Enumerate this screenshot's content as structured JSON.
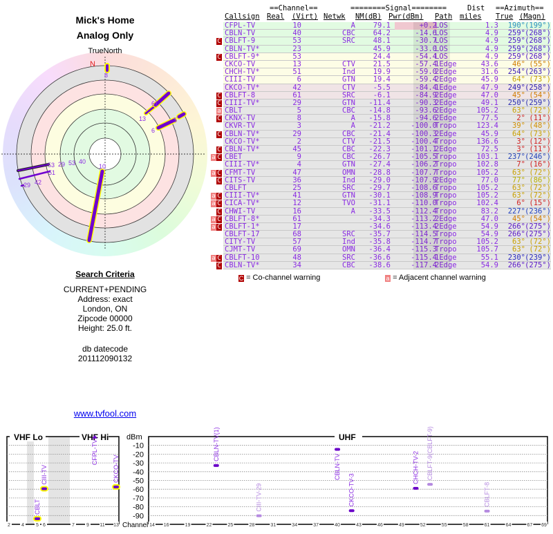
{
  "header": {
    "title": "Mick's Home",
    "subtitle": "Analog Only"
  },
  "polar": {
    "north_label": "TrueNorth",
    "n": "N",
    "labels": [
      "8",
      "61",
      "13",
      "5",
      "6",
      "10",
      "53",
      "29",
      "53",
      "40",
      "51",
      "29",
      "42"
    ]
  },
  "search": {
    "title": "Search Criteria",
    "mode": "CURRENT+PENDING",
    "address": "Address: exact",
    "city": "London, ON",
    "zip": "Zipcode 00000",
    "height": "Height: 25.0 ft.",
    "db_label": "db datecode",
    "db_value": "201112090132"
  },
  "link": "www.tvfool.com",
  "table": {
    "group_channel": "==Channel==",
    "group_signal": "========Signal========",
    "group_dist": "Dist",
    "group_az": "==Azimuth==",
    "cols": {
      "callsign": "Callsign",
      "real": "Real",
      "virt": "(Virt)",
      "netwk": "Netwk",
      "nm": "NM(dB)",
      "pwr": "Pwr(dBm)",
      "path": "Path",
      "miles": "miles",
      "true": "True",
      "magn": "(Magn)"
    },
    "rows": [
      {
        "call": "CFPL-TV",
        "real": "10",
        "net": "A",
        "nm": "79.1",
        "pwr": "+0.2",
        "path": "LOS",
        "dist": "1.3",
        "true": "190°",
        "magn": "(199°)",
        "bg": "#e2fbe2",
        "az": "#2a8fbf",
        "flag": ""
      },
      {
        "call": "CBLN-TV",
        "real": "40",
        "net": "CBC",
        "nm": "64.2",
        "pwr": "-14.6",
        "path": "LOS",
        "dist": "4.9",
        "true": "259°",
        "magn": "(268°)",
        "bg": "#e2fbe2",
        "az": "#4b16c8",
        "flag": ""
      },
      {
        "call": "CBLFT-9",
        "real": "53",
        "net": "SRC",
        "nm": "48.1",
        "pwr": "-30.7",
        "path": "LOS",
        "dist": "4.9",
        "true": "259°",
        "magn": "(268°)",
        "bg": "#e2fbe2",
        "az": "#4b16c8",
        "flag": "c"
      },
      {
        "call": "CBLN-TV*",
        "real": "23",
        "net": "",
        "nm": "45.9",
        "pwr": "-33.0",
        "path": "LOS",
        "dist": "4.9",
        "true": "259°",
        "magn": "(268°)",
        "bg": "#e2fbe2",
        "az": "#4b16c8",
        "flag": ""
      },
      {
        "call": "CBLFT-9*",
        "real": "53",
        "net": "",
        "nm": "24.4",
        "pwr": "-54.4",
        "path": "LOS",
        "dist": "4.9",
        "true": "259°",
        "magn": "(268°)",
        "bg": "#fdfde6",
        "az": "#4b16c8",
        "flag": "c"
      },
      {
        "call": "CKCO-TV",
        "real": "13",
        "net": "CTV",
        "nm": "21.5",
        "pwr": "-57.4",
        "path": "1Edge",
        "dist": "43.6",
        "true": "46°",
        "magn": "(55°)",
        "bg": "#fdfde6",
        "az": "#d07c00",
        "flag": ""
      },
      {
        "call": "CHCH-TV*",
        "real": "51",
        "net": "Ind",
        "nm": "19.9",
        "pwr": "-59.0",
        "path": "2Edge",
        "dist": "31.6",
        "true": "254°",
        "magn": "(263°)",
        "bg": "#fdfde6",
        "az": "#3a1ab8",
        "flag": ""
      },
      {
        "call": "CIII-TV",
        "real": "6",
        "net": "GTN",
        "nm": "19.4",
        "pwr": "-59.4",
        "path": "2Edge",
        "dist": "45.9",
        "true": "64°",
        "magn": "(73°)",
        "bg": "#fdfde6",
        "az": "#c8a000",
        "flag": ""
      },
      {
        "call": "CKCO-TV*",
        "real": "42",
        "net": "CTV",
        "nm": "-5.5",
        "pwr": "-84.4",
        "path": "1Edge",
        "dist": "47.9",
        "true": "249°",
        "magn": "(258°)",
        "bg": "#f0e4e6",
        "az": "#3022b0",
        "flag": ""
      },
      {
        "call": "CBLFT-8",
        "real": "61",
        "net": "SRC",
        "nm": "-6.1",
        "pwr": "-84.9",
        "path": "2Edge",
        "dist": "47.0",
        "true": "45°",
        "magn": "(54°)",
        "bg": "#f0e4e6",
        "az": "#d07c00",
        "flag": "c"
      },
      {
        "call": "CIII-TV*",
        "real": "29",
        "net": "GTN",
        "nm": "-11.4",
        "pwr": "-90.3",
        "path": "2Edge",
        "dist": "49.1",
        "true": "250°",
        "magn": "(259°)",
        "bg": "#e6e6e6",
        "az": "#2a2ab0",
        "flag": "c"
      },
      {
        "call": "CBLT",
        "real": "5",
        "net": "CBC",
        "nm": "-14.8",
        "pwr": "-93.6",
        "path": "2Edge",
        "dist": "105.2",
        "true": "63°",
        "magn": "(72°)",
        "bg": "#e6e6e6",
        "az": "#c8a000",
        "flag": "a"
      },
      {
        "call": "CKNX-TV",
        "real": "8",
        "net": "A",
        "nm": "-15.8",
        "pwr": "-94.6",
        "path": "2Edge",
        "dist": "77.5",
        "true": "2°",
        "magn": "(11°)",
        "bg": "#e6e6e6",
        "az": "#d02020",
        "flag": "c"
      },
      {
        "call": "CKVR-TV",
        "real": "3",
        "net": "A",
        "nm": "-21.2",
        "pwr": "-100.0",
        "path": "Tropo",
        "dist": "123.4",
        "true": "39°",
        "magn": "(48°)",
        "bg": "#e6e6e6",
        "az": "#d09000",
        "flag": ""
      },
      {
        "call": "CBLN-TV*",
        "real": "29",
        "net": "CBC",
        "nm": "-21.4",
        "pwr": "-100.3",
        "path": "2Edge",
        "dist": "45.9",
        "true": "64°",
        "magn": "(73°)",
        "bg": "#e6e6e6",
        "az": "#c8a000",
        "flag": "c"
      },
      {
        "call": "CKCO-TV*",
        "real": "2",
        "net": "CTV",
        "nm": "-21.5",
        "pwr": "-100.4",
        "path": "Tropo",
        "dist": "136.6",
        "true": "3°",
        "magn": "(12°)",
        "bg": "#e6e6e6",
        "az": "#d02020",
        "flag": ""
      },
      {
        "call": "CBLN-TV*",
        "real": "45",
        "net": "CBC",
        "nm": "-22.3",
        "pwr": "-101.1",
        "path": "2Edge",
        "dist": "72.5",
        "true": "3°",
        "magn": "(11°)",
        "bg": "#e6e6e6",
        "az": "#d02020",
        "flag": "c"
      },
      {
        "call": "CBET",
        "real": "9",
        "net": "CBC",
        "nm": "-26.7",
        "pwr": "-105.5",
        "path": "Tropo",
        "dist": "103.1",
        "true": "237°",
        "magn": "(246°)",
        "bg": "#e6e6e6",
        "az": "#2040b8",
        "flag": "ac"
      },
      {
        "call": "CIII-TV*",
        "real": "4",
        "net": "GTN",
        "nm": "-27.4",
        "pwr": "-106.2",
        "path": "Tropo",
        "dist": "102.8",
        "true": "7°",
        "magn": "(16°)",
        "bg": "#e6e6e6",
        "az": "#d02020",
        "flag": ""
      },
      {
        "call": "CFMT-TV",
        "real": "47",
        "net": "OMN",
        "nm": "-28.8",
        "pwr": "-107.7",
        "path": "Tropo",
        "dist": "105.2",
        "true": "63°",
        "magn": "(72°)",
        "bg": "#e6e6e6",
        "az": "#c8a000",
        "flag": "ac"
      },
      {
        "call": "CITS-TV",
        "real": "36",
        "net": "Ind",
        "nm": "-29.0",
        "pwr": "-107.9",
        "path": "2Edge",
        "dist": "77.0",
        "true": "77°",
        "magn": "(86°)",
        "bg": "#e6e6e6",
        "az": "#b8b000",
        "flag": "c"
      },
      {
        "call": "CBLFT",
        "real": "25",
        "net": "SRC",
        "nm": "-29.7",
        "pwr": "-108.6",
        "path": "Tropo",
        "dist": "105.2",
        "true": "63°",
        "magn": "(72°)",
        "bg": "#e6e6e6",
        "az": "#c8a000",
        "flag": ""
      },
      {
        "call": "CIII-TV*",
        "real": "41",
        "net": "GTN",
        "nm": "-30.1",
        "pwr": "-108.9",
        "path": "Tropo",
        "dist": "105.2",
        "true": "63°",
        "magn": "(72°)",
        "bg": "#e6e6e6",
        "az": "#c8a000",
        "flag": "ac"
      },
      {
        "call": "CICA-TV*",
        "real": "12",
        "net": "TVO",
        "nm": "-31.1",
        "pwr": "-110.0",
        "path": "Tropo",
        "dist": "102.4",
        "true": "6°",
        "magn": "(15°)",
        "bg": "#e6e6e6",
        "az": "#d02020",
        "flag": "ac"
      },
      {
        "call": "CHWI-TV",
        "real": "16",
        "net": "A",
        "nm": "-33.5",
        "pwr": "-112.4",
        "path": "Tropo",
        "dist": "83.2",
        "true": "227°",
        "magn": "(236°)",
        "bg": "#e6e6e6",
        "az": "#2040c0",
        "flag": "c"
      },
      {
        "call": "CBLFT-8*",
        "real": "61",
        "net": "",
        "nm": "-34.3",
        "pwr": "-113.2",
        "path": "2Edge",
        "dist": "47.0",
        "true": "45°",
        "magn": "(54°)",
        "bg": "#e6e6e6",
        "az": "#d07c00",
        "flag": "ac"
      },
      {
        "call": "CBLFT-1*",
        "real": "17",
        "net": "",
        "nm": "-34.6",
        "pwr": "-113.4",
        "path": "2Edge",
        "dist": "54.9",
        "true": "266°",
        "magn": "(275°)",
        "bg": "#e6e6e6",
        "az": "#5a16c8",
        "flag": "ac"
      },
      {
        "call": "CBLFT-17",
        "real": "68",
        "net": "SRC",
        "nm": "-35.7",
        "pwr": "-114.5",
        "path": "Tropo",
        "dist": "54.9",
        "true": "266°",
        "magn": "(275°)",
        "bg": "#e6e6e6",
        "az": "#5a16c8",
        "flag": ""
      },
      {
        "call": "CITY-TV",
        "real": "57",
        "net": "Ind",
        "nm": "-35.8",
        "pwr": "-114.7",
        "path": "Tropo",
        "dist": "105.2",
        "true": "63°",
        "magn": "(72°)",
        "bg": "#e6e6e6",
        "az": "#c8a000",
        "flag": ""
      },
      {
        "call": "CJMT-TV",
        "real": "69",
        "net": "OMN",
        "nm": "-36.4",
        "pwr": "-115.3",
        "path": "Tropo",
        "dist": "105.7",
        "true": "63°",
        "magn": "(72°)",
        "bg": "#e6e6e6",
        "az": "#c8a000",
        "flag": ""
      },
      {
        "call": "CBLFT-10",
        "real": "48",
        "net": "SRC",
        "nm": "-36.6",
        "pwr": "-115.4",
        "path": "1Edge",
        "dist": "55.1",
        "true": "230°",
        "magn": "(239°)",
        "bg": "#e6e6e6",
        "az": "#2a2ac0",
        "flag": "ac"
      },
      {
        "call": "CBLN-TV*",
        "real": "34",
        "net": "CBC",
        "nm": "-38.6",
        "pwr": "-117.4",
        "path": "2Edge",
        "dist": "54.9",
        "true": "266°",
        "magn": "(275°)",
        "bg": "#e6e6e6",
        "az": "#5a16c8",
        "flag": "c"
      }
    ]
  },
  "legend": {
    "c_icon": "C",
    "c_text": "= Co-channel warning",
    "a_icon": "a",
    "a_text": "= Adjacent channel warning"
  },
  "spectrum": {
    "vhf_lo": "VHF Lo",
    "vhf_hi": "VHF Hi",
    "uhf": "UHF",
    "unit": "dBm",
    "channel_label": "Channel",
    "dbm_ticks": [
      "-10",
      "-20",
      "-30",
      "-40",
      "-50",
      "-60",
      "-70",
      "-80",
      "-90"
    ],
    "vhf_ticks": [
      "2",
      "4",
      "5",
      "6",
      "7",
      "9",
      "11",
      "13"
    ],
    "uhf_ticks": [
      "14",
      "16",
      "19",
      "22",
      "25",
      "28",
      "31",
      "34",
      "37",
      "40",
      "43",
      "46",
      "49",
      "52",
      "55",
      "58",
      "61",
      "64",
      "67",
      "69"
    ],
    "stations": [
      {
        "label": "CBLT",
        "ch": 5,
        "dbm": -93.6,
        "faded": false,
        "hl": true
      },
      {
        "label": "CIII-TV",
        "ch": 6,
        "dbm": -59.4,
        "faded": false,
        "hl": true
      },
      {
        "label": "CFPL-TV",
        "ch": 10,
        "dbm": 0.2,
        "faded": false,
        "hl": false
      },
      {
        "label": "CKCO-TV",
        "ch": 13,
        "dbm": -57.4,
        "faded": false,
        "hl": true
      },
      {
        "label": "CBLN-TV(1)",
        "ch": 23,
        "dbm": -33.0,
        "faded": false,
        "hl": false
      },
      {
        "label": "CIII-TV-29",
        "ch": 29,
        "dbm": -90.3,
        "faded": true,
        "hl": false
      },
      {
        "label": "CBLN-TV",
        "ch": 40,
        "dbm": -14.6,
        "faded": false,
        "hl": false
      },
      {
        "label": "CKCO-TV-3",
        "ch": 42,
        "dbm": -84.4,
        "faded": false,
        "hl": false
      },
      {
        "label": "CHCH-TV-2",
        "ch": 51,
        "dbm": -59.0,
        "faded": false,
        "hl": false
      },
      {
        "label": "CBLFT-9(CBLFT-9)",
        "ch": 53,
        "dbm": -54.4,
        "faded": true,
        "hl": false
      },
      {
        "label": "CBLFT-8",
        "ch": 61,
        "dbm": -84.9,
        "faded": true,
        "hl": false
      }
    ]
  }
}
